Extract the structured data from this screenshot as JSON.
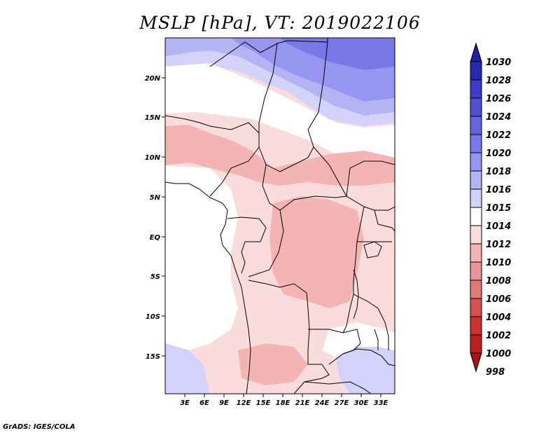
{
  "title": "MSLP [hPa], VT: 2019022106",
  "credit": "GrADS: IGES/COLA",
  "map": {
    "lat_labels": [
      "20N",
      "15N",
      "10N",
      "5N",
      "EQ",
      "5S",
      "10S",
      "15S"
    ],
    "lon_labels": [
      "3E",
      "6E",
      "9E",
      "12E",
      "15E",
      "18E",
      "21E",
      "24E",
      "27E",
      "30E",
      "33E"
    ]
  },
  "colorbar": {
    "levels": [
      "1030",
      "1028",
      "1026",
      "1024",
      "1022",
      "1020",
      "1018",
      "1016",
      "1015",
      "1014",
      "1012",
      "1010",
      "1008",
      "1006",
      "1004",
      "1002",
      "1000",
      "998"
    ],
    "colors": [
      "#1e1ea0",
      "#2828b4",
      "#3c3cc8",
      "#5050d2",
      "#6464dc",
      "#7878e6",
      "#9696f0",
      "#b4b4f5",
      "#d2d2fa",
      "#ffffff",
      "#fadcdc",
      "#f5b4b4",
      "#eb9696",
      "#e17878",
      "#d75050",
      "#cd3232",
      "#be1e1e",
      "#aa1414"
    ]
  }
}
